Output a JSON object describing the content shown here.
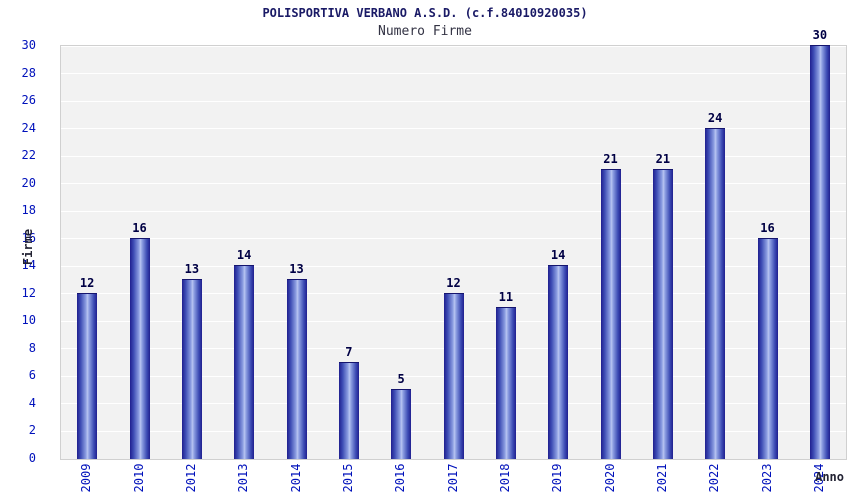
{
  "header": {
    "title": "POLISPORTIVA VERBANO A.S.D. (c.f.84010920035)",
    "subtitle": "Numero Firme"
  },
  "chart_data": {
    "type": "bar",
    "title": "POLISPORTIVA VERBANO A.S.D. (c.f.84010920035)",
    "subtitle": "Numero Firme",
    "categories": [
      "2009",
      "2010",
      "2012",
      "2013",
      "2014",
      "2015",
      "2016",
      "2017",
      "2018",
      "2019",
      "2020",
      "2021",
      "2022",
      "2023",
      "2024"
    ],
    "values": [
      12,
      16,
      13,
      14,
      13,
      7,
      5,
      12,
      11,
      14,
      21,
      21,
      24,
      16,
      30
    ],
    "xlabel": "Anno",
    "ylabel": "Firme",
    "ylim": [
      0,
      30
    ],
    "ytick_step": 2,
    "grid": true,
    "legend": "none",
    "colors": {
      "bar_edge": "#1f1f8f",
      "bar_center": "#b9c5f2",
      "tick_label": "#0011bb",
      "value_label": "#000044",
      "title": "#1a1a66",
      "plot_background": "#f2f2f2",
      "gridline": "#ffffff"
    }
  }
}
